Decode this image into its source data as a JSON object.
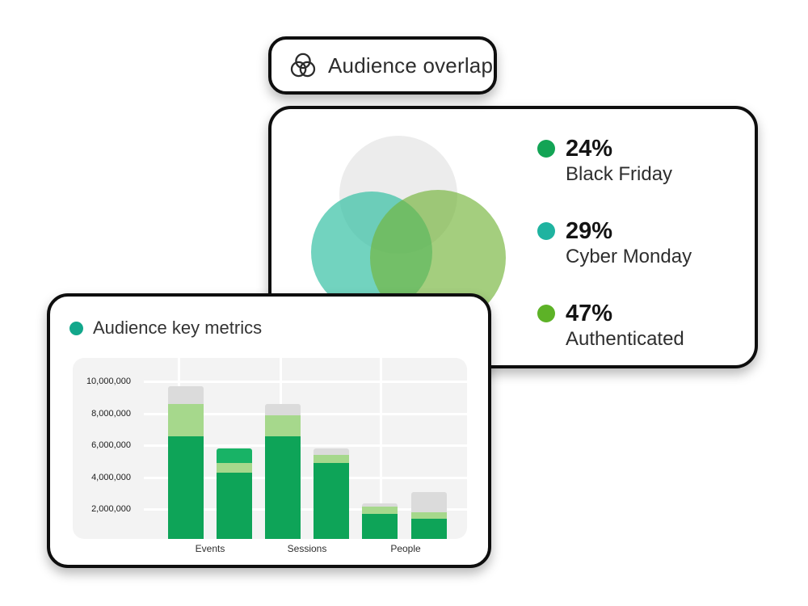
{
  "page": {
    "background": "#ffffff"
  },
  "badge": {
    "label": "Audience overlap",
    "icon": "audience-overlap-venn-icon",
    "icon_color": "#2b2b2b"
  },
  "overlap_card": {
    "venn_circles": [
      {
        "name": "gray-circle",
        "color": "rgba(150,150,150,0.18)"
      },
      {
        "name": "teal-circle",
        "color": "rgba(54,192,164,0.70)"
      },
      {
        "name": "green-circle",
        "color": "rgba(115,180,57,0.65)"
      }
    ],
    "legend": [
      {
        "pct": "24%",
        "label": "Black Friday",
        "color": "#13A455"
      },
      {
        "pct": "29%",
        "label": "Cyber Monday",
        "color": "#1FB3A0"
      },
      {
        "pct": "47%",
        "label": "Authenticated",
        "color": "#5DB227"
      }
    ]
  },
  "metrics_card": {
    "title": "Audience key metrics",
    "title_dot_color": "#12A78B"
  },
  "chart_data": {
    "type": "bar",
    "stacked": true,
    "title": "Audience key metrics",
    "categories": [
      "Events",
      "Sessions",
      "People"
    ],
    "bars_per_category": 2,
    "y_tick_labels": [
      "10,000,000",
      "8,000,000",
      "6,000,000",
      "4,000,000",
      "2,000,000"
    ],
    "y_tick_values": [
      10000000,
      8000000,
      6000000,
      4000000,
      2000000
    ],
    "ylim": [
      0,
      11500000
    ],
    "grid": true,
    "legend_position": "none",
    "palette": {
      "green": "#0EA458",
      "medium_green": "#18B366",
      "light_green": "#A6D88C",
      "gray": "#DBDBDB"
    },
    "bars": [
      {
        "category": "Events",
        "segments": [
          {
            "value": 6600000,
            "color_key": "green"
          },
          {
            "value": 2000000,
            "color_key": "light_green"
          },
          {
            "value": 1100000,
            "color_key": "gray"
          }
        ]
      },
      {
        "category": "Events",
        "segments": [
          {
            "value": 4300000,
            "color_key": "green"
          },
          {
            "value": 600000,
            "color_key": "light_green"
          },
          {
            "value": 900000,
            "color_key": "medium_green"
          }
        ]
      },
      {
        "category": "Sessions",
        "segments": [
          {
            "value": 6600000,
            "color_key": "green"
          },
          {
            "value": 1300000,
            "color_key": "light_green"
          },
          {
            "value": 700000,
            "color_key": "gray"
          }
        ]
      },
      {
        "category": "Sessions",
        "segments": [
          {
            "value": 4900000,
            "color_key": "green"
          },
          {
            "value": 500000,
            "color_key": "light_green"
          },
          {
            "value": 400000,
            "color_key": "gray"
          }
        ]
      },
      {
        "category": "People",
        "segments": [
          {
            "value": 1700000,
            "color_key": "green"
          },
          {
            "value": 500000,
            "color_key": "light_green"
          },
          {
            "value": 200000,
            "color_key": "gray"
          }
        ]
      },
      {
        "category": "People",
        "segments": [
          {
            "value": 1400000,
            "color_key": "green"
          },
          {
            "value": 400000,
            "color_key": "light_green"
          },
          {
            "value": 1300000,
            "color_key": "gray"
          }
        ]
      }
    ]
  }
}
